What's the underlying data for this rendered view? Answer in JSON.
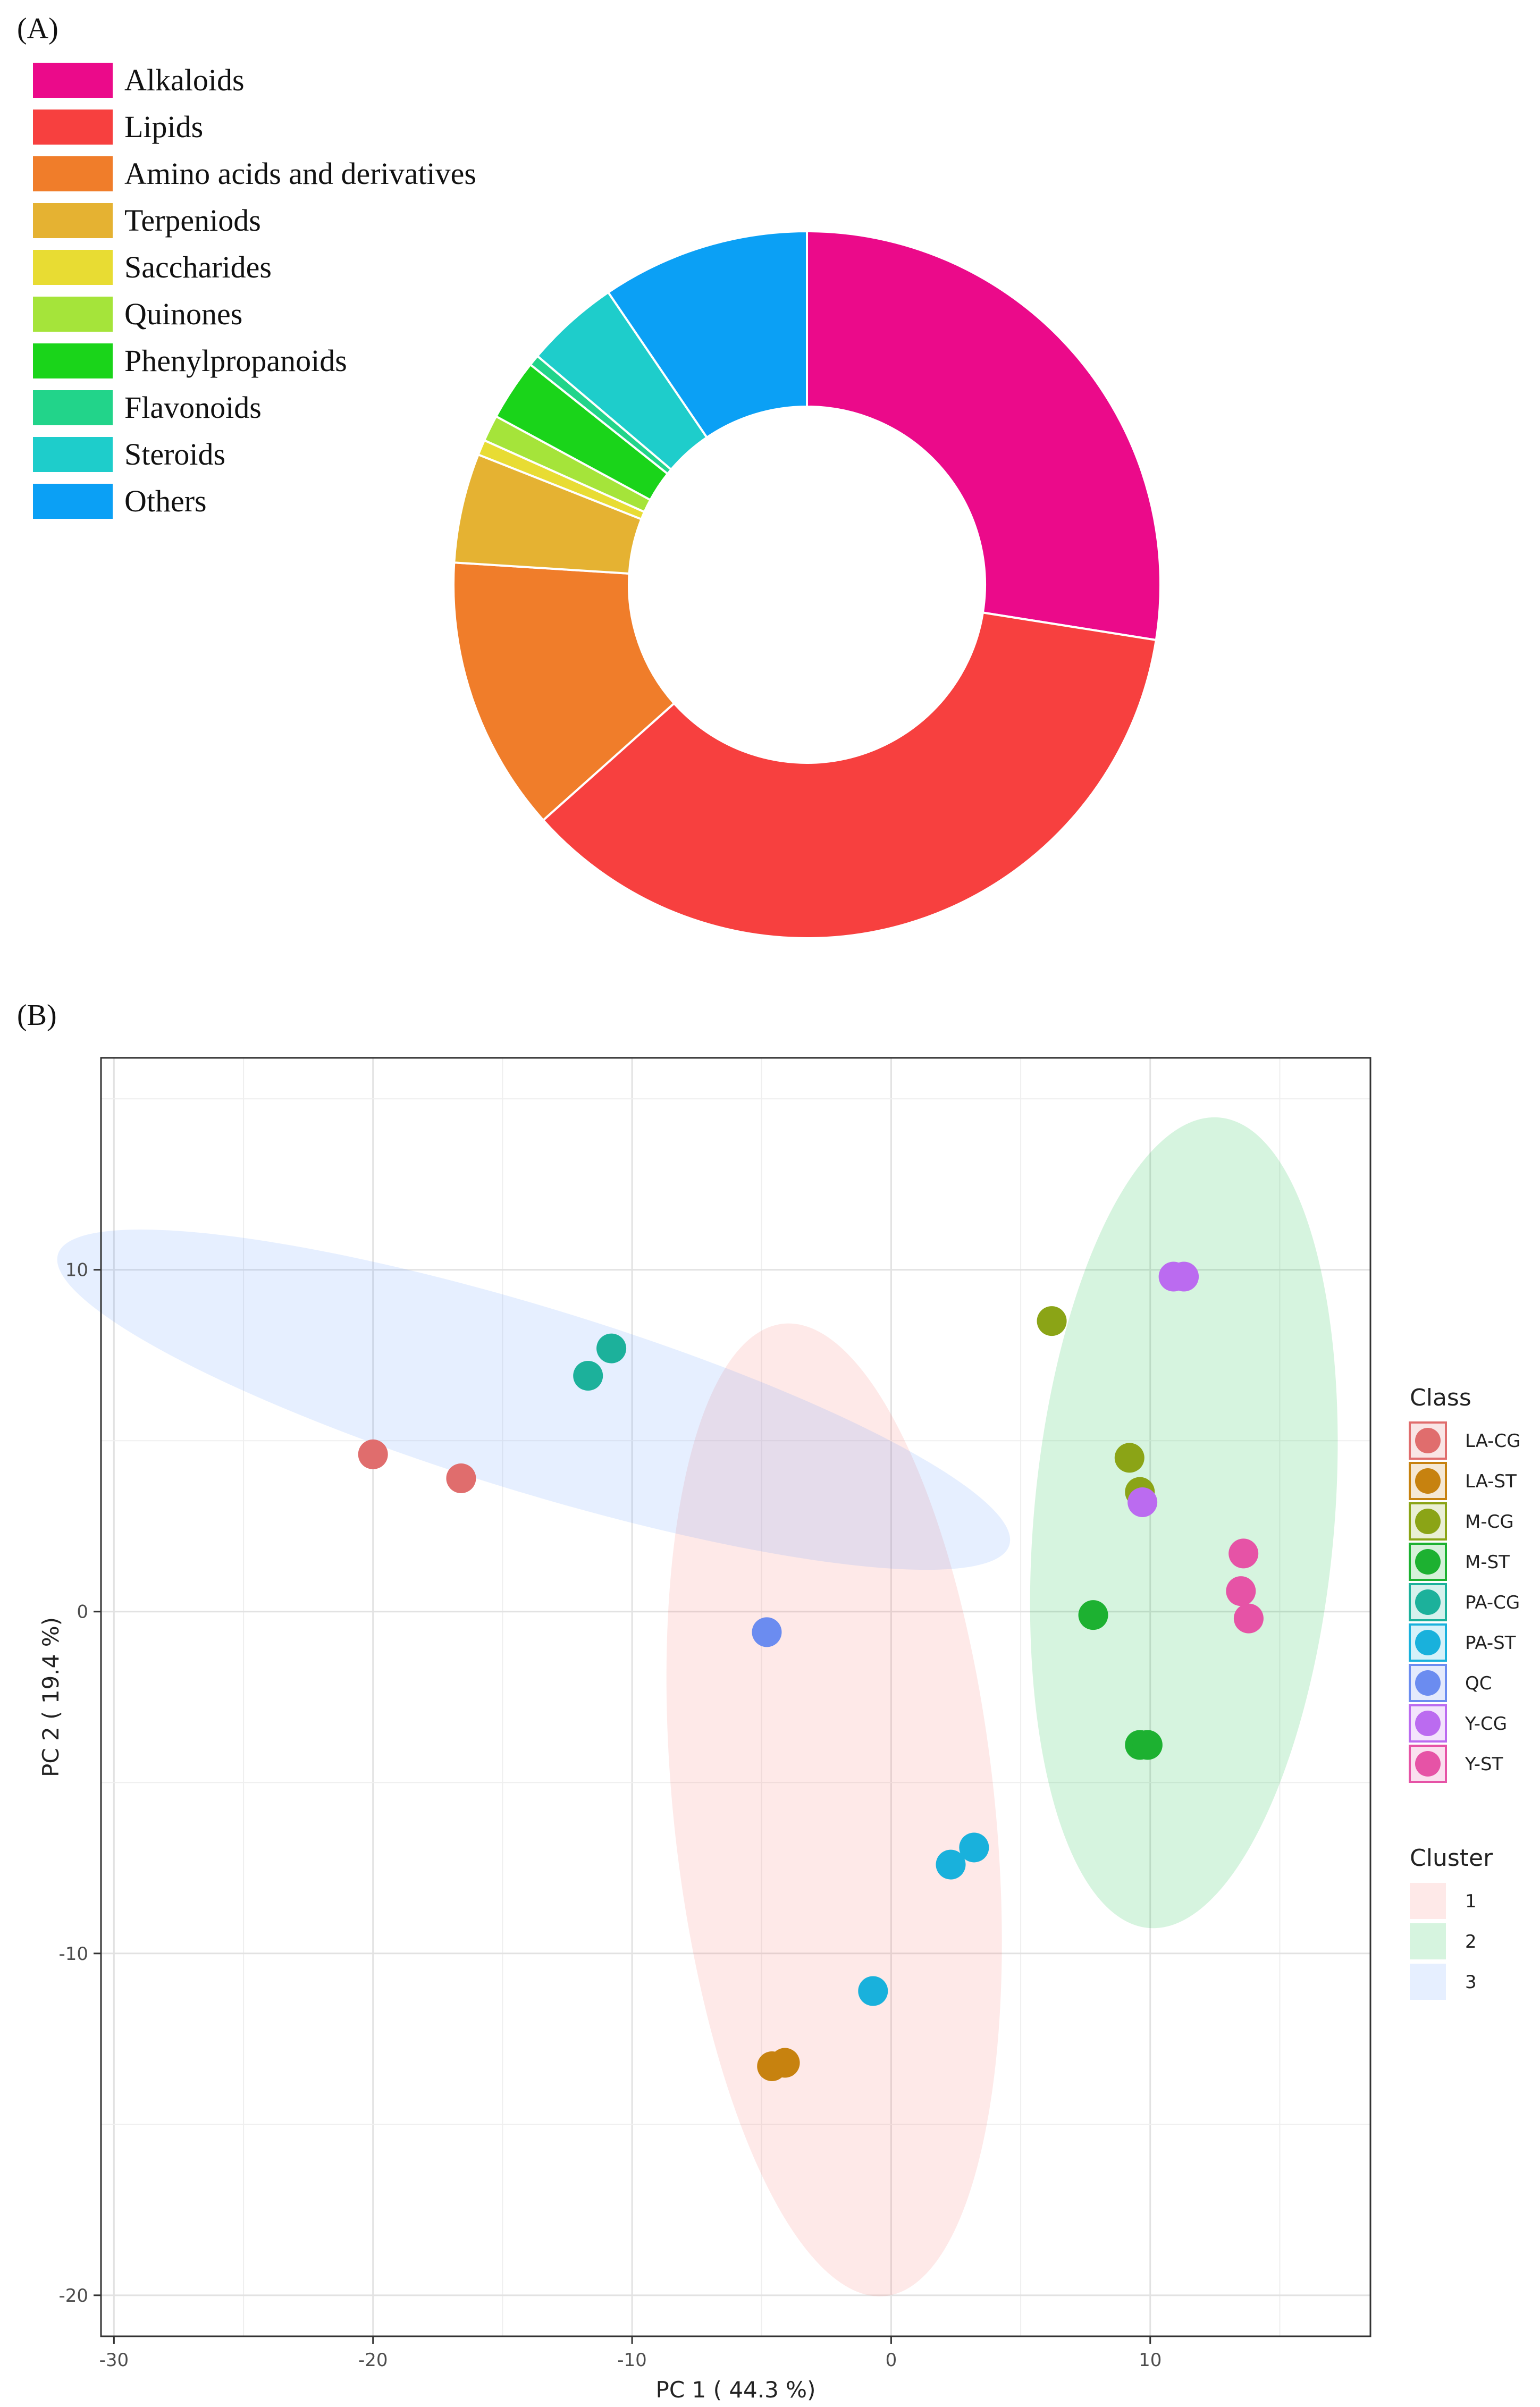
{
  "panel_labels": {
    "a": "(A)",
    "b": "(B)"
  },
  "chart_data": [
    {
      "type": "pie",
      "donut": true,
      "title": "",
      "legend_position": "top-left",
      "categories": [
        "Alkaloids",
        "Lipids",
        "Amino acids and derivatives",
        "Terpeniods",
        "Saccharides",
        "Quinones",
        "Phenylpropanoids",
        "Flavonoids",
        "Steroids",
        "Others"
      ],
      "values": [
        27.5,
        35.9,
        12.6,
        5.0,
        0.7,
        1.2,
        2.8,
        0.5,
        4.3,
        9.5
      ],
      "colors": [
        "#EB0A8A",
        "#F7403F",
        "#F07D2A",
        "#E5B232",
        "#E8DC33",
        "#A5E43A",
        "#1AD41A",
        "#22D48A",
        "#1ECDCB",
        "#0BA0F5"
      ]
    },
    {
      "type": "scatter",
      "xlabel": "PC 1 ( 44.3 %)",
      "ylabel": "PC 2 ( 19.4 %)",
      "xlim": [
        -30.5,
        18.5
      ],
      "ylim": [
        -21.2,
        16.2
      ],
      "xticks": [
        -30,
        -20,
        -10,
        0,
        10
      ],
      "yticks": [
        -20,
        -10,
        0,
        10
      ],
      "grid": true,
      "legend_position": "right",
      "legend_title": "Class",
      "series": [
        {
          "name": "LA-CG",
          "color": "#E06D6D",
          "points": [
            [
              -20.0,
              4.6
            ],
            [
              -16.6,
              3.9
            ]
          ]
        },
        {
          "name": "LA-ST",
          "color": "#C7820F",
          "points": [
            [
              -4.6,
              -13.3
            ],
            [
              -4.1,
              -13.2
            ]
          ]
        },
        {
          "name": "M-CG",
          "color": "#8BA416",
          "points": [
            [
              6.2,
              8.5
            ],
            [
              9.2,
              4.5
            ],
            [
              9.6,
              3.5
            ]
          ]
        },
        {
          "name": "M-ST",
          "color": "#1DB131",
          "points": [
            [
              7.8,
              -0.1
            ],
            [
              9.6,
              -3.9
            ],
            [
              9.9,
              -3.9
            ]
          ]
        },
        {
          "name": "PA-CG",
          "color": "#1CB19B",
          "points": [
            [
              -11.7,
              6.9
            ],
            [
              -10.8,
              7.7
            ]
          ]
        },
        {
          "name": "PA-ST",
          "color": "#19B1DC",
          "points": [
            [
              -0.7,
              -11.1
            ],
            [
              2.3,
              -7.4
            ],
            [
              3.2,
              -6.9
            ]
          ]
        },
        {
          "name": "QC",
          "color": "#6B8CF0",
          "points": [
            [
              -4.8,
              -0.6
            ]
          ]
        },
        {
          "name": "Y-CG",
          "color": "#BB6BF0",
          "points": [
            [
              10.9,
              9.8
            ],
            [
              11.3,
              9.8
            ],
            [
              9.7,
              3.2
            ]
          ]
        },
        {
          "name": "Y-ST",
          "color": "#E653A6",
          "points": [
            [
              13.6,
              1.7
            ],
            [
              13.5,
              0.6
            ],
            [
              13.8,
              -0.2
            ]
          ]
        }
      ],
      "cluster_legend_title": "Cluster",
      "clusters": [
        {
          "name": "1",
          "color": "#F8766D",
          "ellipse": {
            "center": [
              -2.2,
              -5.8
            ],
            "semi_axes": [
              6.2,
              14.3
            ],
            "rotation_deg": -6
          }
        },
        {
          "name": "2",
          "color": "#00BA38",
          "ellipse": {
            "center": [
              11.3,
              2.6
            ],
            "semi_axes": [
              5.8,
              11.9
            ],
            "rotation_deg": 5
          }
        },
        {
          "name": "3",
          "color": "#619CFF",
          "ellipse": {
            "center": [
              -13.8,
              6.2
            ],
            "semi_axes": [
              19.2,
              2.7
            ],
            "rotation_deg": 17
          }
        }
      ]
    }
  ]
}
